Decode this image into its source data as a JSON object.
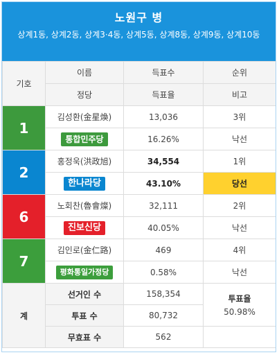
{
  "header": {
    "title": "노원구 병",
    "districts": "상계1동, 상계2동, 상계3·4동, 상계5동, 상계8동, 상계9동, 상계10동"
  },
  "columns": {
    "symbol": "기호",
    "name": "이름",
    "votes": "득표수",
    "rank": "순위",
    "party": "정당",
    "rate": "득표율",
    "note": "비고"
  },
  "candidates": [
    {
      "number": "1",
      "name": "김성환(金星煥)",
      "votes": "13,036",
      "rank": "3위",
      "party": "통합민주당",
      "rate": "16.26%",
      "result": "낙선",
      "color": "#3d9a3d"
    },
    {
      "number": "2",
      "name": "홍정욱(洪政旭)",
      "votes": "34,554",
      "rank": "1위",
      "party": "한나라당",
      "rate": "43.10%",
      "result": "당선",
      "color": "#0a86d0"
    },
    {
      "number": "6",
      "name": "노회찬(魯會燦)",
      "votes": "32,111",
      "rank": "2위",
      "party": "진보신당",
      "rate": "40.05%",
      "result": "낙선",
      "color": "#e4202a"
    },
    {
      "number": "7",
      "name": "김인로(金仁路)",
      "votes": "469",
      "rank": "4위",
      "party": "평화통일가정당",
      "rate": "0.58%",
      "result": "낙선",
      "color": "#3c9e3c"
    }
  ],
  "totals": {
    "label": "계",
    "electorate_label": "선거인 수",
    "electorate": "158,354",
    "turnout_label": "투표 수",
    "turnout": "80,732",
    "invalid_label": "무효표 수",
    "invalid": "562",
    "rate_label": "투표율",
    "rate": "50.98%"
  }
}
